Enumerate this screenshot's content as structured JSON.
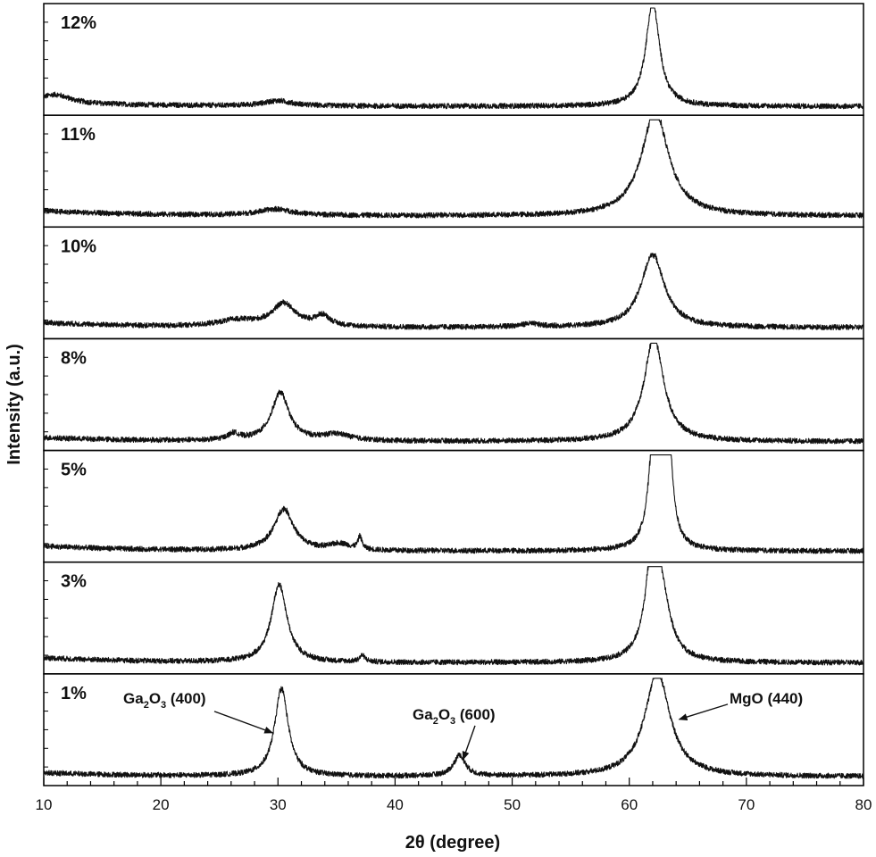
{
  "chart_data": {
    "type": "line",
    "title": "",
    "xlabel": "2θ (degree)",
    "ylabel": "Intensity (a.u.)",
    "xlim": [
      10,
      80
    ],
    "x_ticks": [
      10,
      20,
      30,
      40,
      50,
      60,
      70,
      80
    ],
    "stacked_panels": true,
    "y_tick_labels": false,
    "series": [
      {
        "name": "12%",
        "baseline": 0.06,
        "peaks": [
          {
            "x": 62.0,
            "height": 1.0,
            "width": 0.7
          },
          {
            "x": 30.0,
            "height": 0.05,
            "width": 1.5
          },
          {
            "x": 11.0,
            "height": 0.08,
            "width": 1.5
          }
        ]
      },
      {
        "name": "11%",
        "baseline": 0.08,
        "peaks": [
          {
            "x": 62.2,
            "height": 1.0,
            "width": 1.4
          },
          {
            "x": 29.8,
            "height": 0.06,
            "width": 1.8
          }
        ]
      },
      {
        "name": "10%",
        "baseline": 0.08,
        "peaks": [
          {
            "x": 62.0,
            "height": 0.7,
            "width": 1.2
          },
          {
            "x": 30.5,
            "height": 0.22,
            "width": 1.2
          },
          {
            "x": 33.8,
            "height": 0.1,
            "width": 0.8
          },
          {
            "x": 26.5,
            "height": 0.06,
            "width": 2.0
          },
          {
            "x": 51.5,
            "height": 0.03,
            "width": 1.0
          }
        ]
      },
      {
        "name": "8%",
        "baseline": 0.06,
        "peaks": [
          {
            "x": 62.1,
            "height": 1.0,
            "width": 1.0
          },
          {
            "x": 30.2,
            "height": 0.46,
            "width": 0.9
          },
          {
            "x": 35.0,
            "height": 0.06,
            "width": 1.5
          },
          {
            "x": 26.2,
            "height": 0.06,
            "width": 0.6
          }
        ]
      },
      {
        "name": "5%",
        "baseline": 0.08,
        "peaks": [
          {
            "x": 62.1,
            "height": 1.0,
            "width": 0.5
          },
          {
            "x": 62.8,
            "height": 1.0,
            "width": 0.4
          },
          {
            "x": 63.4,
            "height": 0.75,
            "width": 0.4
          },
          {
            "x": 30.5,
            "height": 0.4,
            "width": 1.0
          },
          {
            "x": 37.0,
            "height": 0.12,
            "width": 0.2
          },
          {
            "x": 35.3,
            "height": 0.06,
            "width": 1.0
          }
        ]
      },
      {
        "name": "3%",
        "baseline": 0.08,
        "peaks": [
          {
            "x": 62.0,
            "height": 1.0,
            "width": 0.7
          },
          {
            "x": 62.8,
            "height": 0.45,
            "width": 0.9
          },
          {
            "x": 30.1,
            "height": 0.75,
            "width": 0.8
          },
          {
            "x": 37.2,
            "height": 0.06,
            "width": 0.3
          }
        ]
      },
      {
        "name": "1%",
        "baseline": 0.06,
        "peaks": [
          {
            "x": 62.4,
            "height": 1.0,
            "width": 1.3
          },
          {
            "x": 30.3,
            "height": 0.84,
            "width": 0.7
          },
          {
            "x": 45.5,
            "height": 0.2,
            "width": 0.6
          }
        ]
      }
    ],
    "annotations": [
      {
        "panel": "1%",
        "base": "Ga",
        "sub1": "2",
        "mid": "O",
        "sub2": "3",
        "rest": " (400)",
        "target_x": 30.3
      },
      {
        "panel": "1%",
        "base": "Ga",
        "sub1": "2",
        "mid": "O",
        "sub2": "3",
        "rest": " (600)",
        "target_x": 45.5
      },
      {
        "panel": "1%",
        "base": "MgO (440)",
        "sub1": "",
        "mid": "",
        "sub2": "",
        "rest": "",
        "target_x": 63.8
      }
    ]
  }
}
